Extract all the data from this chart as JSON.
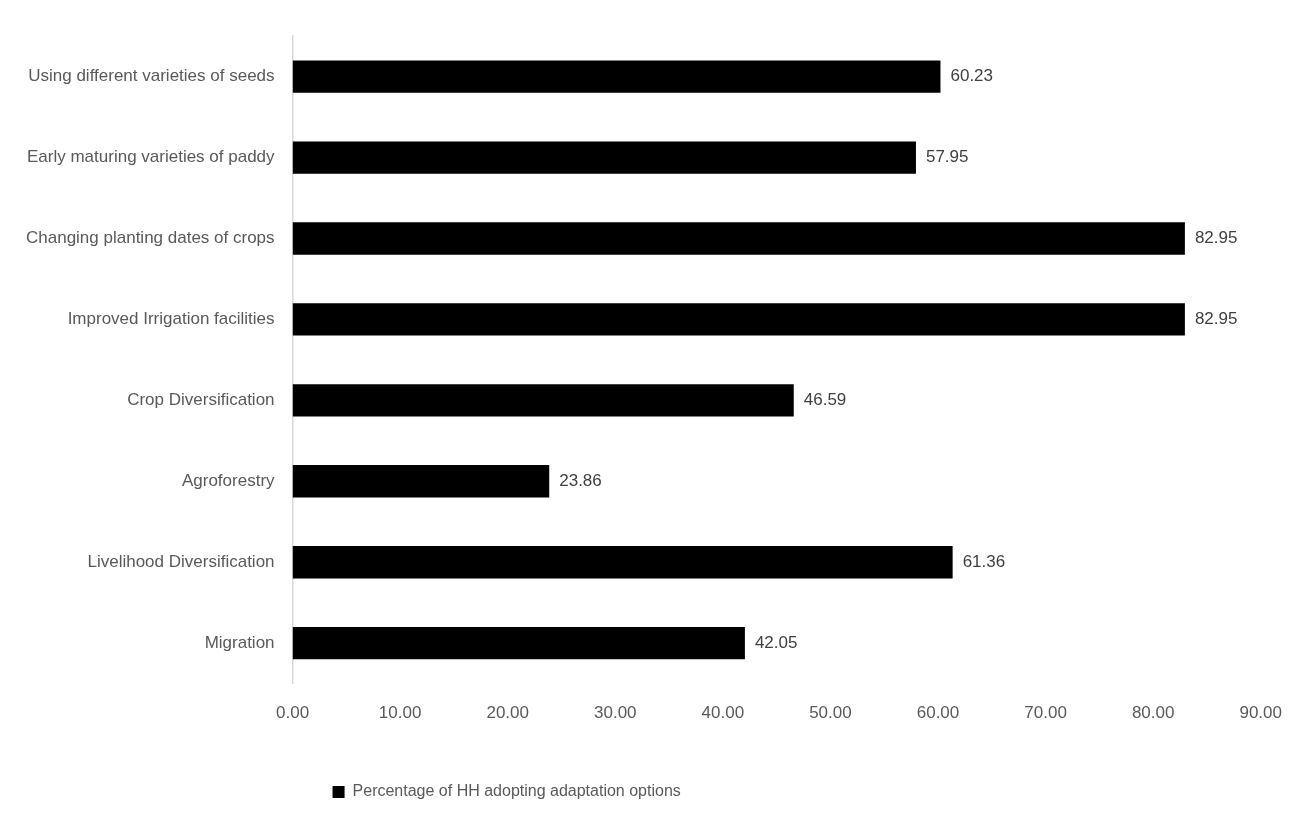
{
  "chart_data": {
    "type": "bar",
    "orientation": "horizontal",
    "categories": [
      "Using different varieties of seeds",
      "Early maturing varieties of paddy",
      "Changing planting dates of crops",
      "Improved Irrigation facilities",
      "Crop Diversification",
      "Agroforestry",
      "Livelihood Diversification",
      "Migration"
    ],
    "series": [
      {
        "name": "Percentage of HH adopting adaptation options",
        "color": "#000000",
        "values": [
          60.23,
          57.95,
          82.95,
          82.95,
          46.59,
          23.86,
          61.36,
          42.05
        ]
      }
    ],
    "xlim": [
      0,
      90
    ],
    "xticks": [
      {
        "value": 0,
        "label": "0.00"
      },
      {
        "value": 10,
        "label": "10.00"
      },
      {
        "value": 20,
        "label": "20.00"
      },
      {
        "value": 30,
        "label": "30.00"
      },
      {
        "value": 40,
        "label": "40.00"
      },
      {
        "value": 50,
        "label": "50.00"
      },
      {
        "value": 60,
        "label": "60.00"
      },
      {
        "value": 70,
        "label": "70.00"
      },
      {
        "value": 80,
        "label": "80.00"
      },
      {
        "value": 90,
        "label": "90.00"
      }
    ],
    "data_labels": true,
    "grid": false,
    "legend": "bottom left"
  }
}
